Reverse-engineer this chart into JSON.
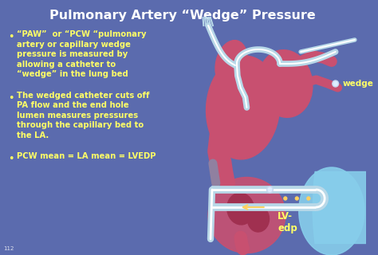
{
  "title": "Pulmonary Artery “Wedge” Pressure",
  "title_color": "#FFFFFF",
  "title_fontsize": 11.5,
  "background_color": "#5B6BAE",
  "text_color": "#FFFF66",
  "bullet1_lines": [
    "“PAW”  or “PCW “pulmonary",
    "artery or capillary wedge",
    "pressure is measured by",
    "allowing a catheter to",
    "“wedge” in the lung bed"
  ],
  "bullet2_lines": [
    "The wedged catheter cuts off",
    "PA flow and the end hole",
    "lumen measures pressures",
    "through the capillary bed to",
    "the LA."
  ],
  "bullet3_lines": [
    "PCW mean = LA mean = LVEDP"
  ],
  "wedge_label": "wedge",
  "lv_label": "LV-\nedp",
  "text_fontsize": 7.2,
  "heart_color": "#C85070",
  "lung_color": "#ADD8E6",
  "page_num": "112"
}
